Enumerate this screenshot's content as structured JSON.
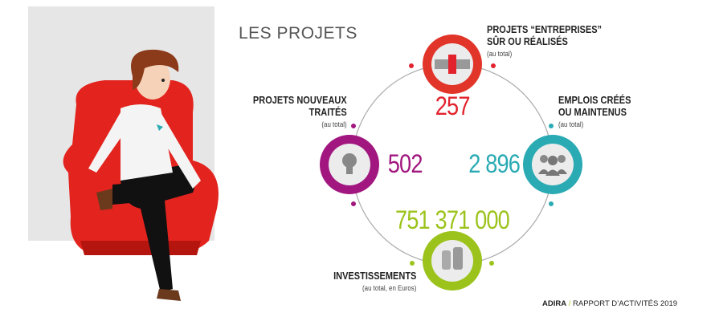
{
  "title": "LES PROJETS",
  "colors": {
    "red": "#e2232e",
    "purple": "#a1177f",
    "teal": "#2aaab3",
    "green": "#9cc31c",
    "background_panel": "#e6e6e6"
  },
  "stats": [
    {
      "label_line1": "PROJETS “ENTREPRISES”",
      "label_line2": "SÛR OU RÉALISÉS",
      "sub": "(au total)",
      "value": "257",
      "icon": "puzzle-icon"
    },
    {
      "label_line1": "PROJETS NOUVEAUX",
      "label_line2": "TRAITÉS",
      "sub": "(au total)",
      "value": "502",
      "icon": "lightbulb-icon"
    },
    {
      "label_line1": "EMPLOIS CRÉÉS",
      "label_line2": "OU MAINTENUS",
      "sub": "(au total)",
      "value": "2 896",
      "icon": "people-icon"
    },
    {
      "label_line1": "INVESTISSEMENTS",
      "sub": "(au total, en Euros)",
      "value": "751 371 000",
      "icon": "coins-icon"
    }
  ],
  "footer": {
    "brand": "ADIRA",
    "separator": "/",
    "text": "RAPPORT D’ACTIVITÉS 2019"
  }
}
